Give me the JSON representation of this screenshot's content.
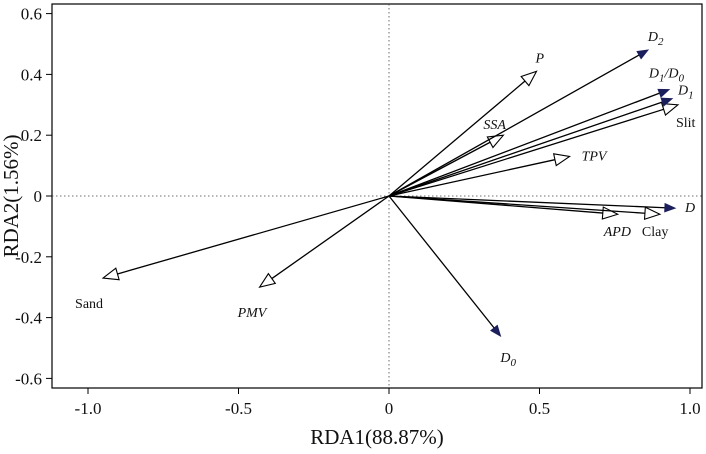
{
  "chart_data": {
    "type": "scatter",
    "subtype": "rda-biplot",
    "xlabel": "RDA1(88.87%)",
    "ylabel": "RDA2(1.56%)",
    "xlim": [
      -1.04,
      1.0
    ],
    "ylim": [
      -0.63,
      0.63
    ],
    "x_ticks": [
      {
        "value": -1.0,
        "label": "-1.0"
      },
      {
        "value": -0.5,
        "label": "-0.5"
      },
      {
        "value": 0,
        "label": "0"
      },
      {
        "value": 0.5,
        "label": "0.5"
      },
      {
        "value": 1.0,
        "label": "1.0"
      }
    ],
    "y_ticks": [
      {
        "value": 0.6,
        "label": "0.6"
      },
      {
        "value": 0.4,
        "label": "0.4"
      },
      {
        "value": 0.2,
        "label": "0.2"
      },
      {
        "value": 0,
        "label": "0"
      },
      {
        "value": -0.2,
        "label": "-0.2"
      },
      {
        "value": -0.4,
        "label": "-0.4"
      },
      {
        "value": -0.6,
        "label": "-0.6"
      }
    ],
    "reference_lines": {
      "x": 0,
      "y": 0,
      "style": "dotted"
    },
    "grid": false,
    "response_vectors": [
      {
        "name": "D2",
        "label": "D",
        "sub": "2",
        "x": 0.86,
        "y": 0.48,
        "style": "filled"
      },
      {
        "name": "D1/D0",
        "label": "D",
        "sub": "1",
        "label2": "/D",
        "sub2": "0",
        "x": 0.93,
        "y": 0.35,
        "style": "filled"
      },
      {
        "name": "D1",
        "label": "D",
        "sub": "1",
        "x": 0.94,
        "y": 0.32,
        "style": "filled"
      },
      {
        "name": "D",
        "label": "D",
        "x": 0.95,
        "y": -0.04,
        "style": "filled"
      },
      {
        "name": "D0",
        "label": "D",
        "sub": "0",
        "x": 0.37,
        "y": -0.46,
        "style": "filled"
      }
    ],
    "explanatory_vectors": [
      {
        "name": "P",
        "label": "P",
        "x": 0.49,
        "y": 0.41,
        "style": "open",
        "italic": true
      },
      {
        "name": "SSA",
        "label": "SSA",
        "x": 0.38,
        "y": 0.2,
        "style": "open",
        "italic": true
      },
      {
        "name": "Slit",
        "label": "Slit",
        "x": 0.96,
        "y": 0.3,
        "style": "open",
        "italic": false
      },
      {
        "name": "TPV",
        "label": "TPV",
        "x": 0.6,
        "y": 0.13,
        "style": "open",
        "italic": true
      },
      {
        "name": "APD",
        "label": "APD",
        "x": 0.76,
        "y": -0.06,
        "style": "open",
        "italic": true
      },
      {
        "name": "Clay",
        "label": "Clay",
        "x": 0.9,
        "y": -0.06,
        "style": "open",
        "italic": false
      },
      {
        "name": "Sand",
        "label": "Sand",
        "x": -0.95,
        "y": -0.27,
        "style": "open",
        "italic": false
      },
      {
        "name": "PMV",
        "label": "PMV",
        "x": -0.43,
        "y": -0.3,
        "style": "open",
        "italic": true
      }
    ],
    "colors": {
      "filled_arrowhead": "#1b1f5c",
      "line": "#000000"
    }
  }
}
